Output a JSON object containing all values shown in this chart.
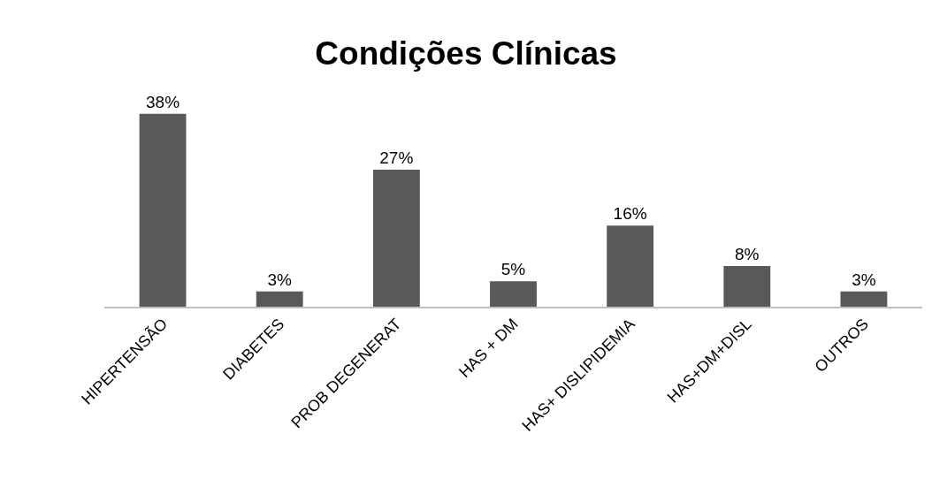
{
  "chart_data": {
    "type": "bar",
    "title": "Condições Clínicas",
    "categories": [
      "HIPERTENSÃO",
      "DIABETES",
      "PROB DEGENERAT",
      "HAS + DM",
      "HAS+ DISLIPIDEMIA",
      "HAS+DM+DISL",
      "OUTROS"
    ],
    "values": [
      38,
      3,
      27,
      5,
      16,
      8,
      3
    ],
    "value_labels": [
      "38%",
      "3%",
      "27%",
      "5%",
      "16%",
      "8%",
      "3%"
    ],
    "color": "#595959"
  }
}
